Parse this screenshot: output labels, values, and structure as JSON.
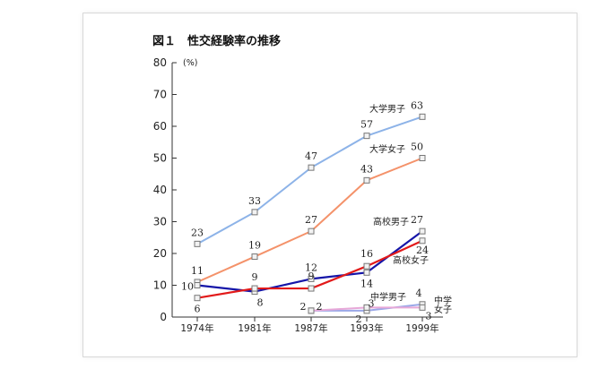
{
  "chart_data": {
    "type": "line",
    "title": "図１　性交経験率の推移",
    "unit": "(%)",
    "ylim": [
      0,
      80
    ],
    "yticks": [
      "0",
      "10",
      "20",
      "30",
      "40",
      "50",
      "60",
      "70",
      "80"
    ],
    "categories": [
      "1974年",
      "1981年",
      "1987年",
      "1993年",
      "1999年"
    ],
    "series": [
      {
        "name": "大学男子",
        "color": "#8db3e8",
        "values": [
          23,
          33,
          47,
          57,
          63
        ],
        "labels": [
          "23",
          "33",
          "47",
          "57",
          "63"
        ]
      },
      {
        "name": "大学女子",
        "color": "#f4926a",
        "values": [
          11,
          19,
          27,
          43,
          50
        ],
        "labels": [
          "11",
          "19",
          "27",
          "43",
          "50"
        ]
      },
      {
        "name": "高校男子",
        "color": "#1515a8",
        "values": [
          10,
          8,
          12,
          14,
          27
        ],
        "labels": [
          "10",
          "8",
          "12",
          "14",
          "27"
        ]
      },
      {
        "name": "高校女子",
        "color": "#e21a1a",
        "values": [
          6,
          9,
          9,
          16,
          24
        ],
        "labels": [
          "6",
          "9",
          "9",
          "16",
          "24"
        ]
      },
      {
        "name": "中学男子",
        "color": "#9aa8e8",
        "values": [
          null,
          null,
          2,
          2,
          4
        ],
        "labels": [
          "",
          "",
          "2",
          "2",
          "4"
        ]
      },
      {
        "name": "中学女子",
        "color": "#e7a8d8",
        "values": [
          null,
          null,
          2,
          3,
          3
        ],
        "labels": [
          "",
          "",
          "2",
          "3",
          "3"
        ]
      }
    ]
  }
}
